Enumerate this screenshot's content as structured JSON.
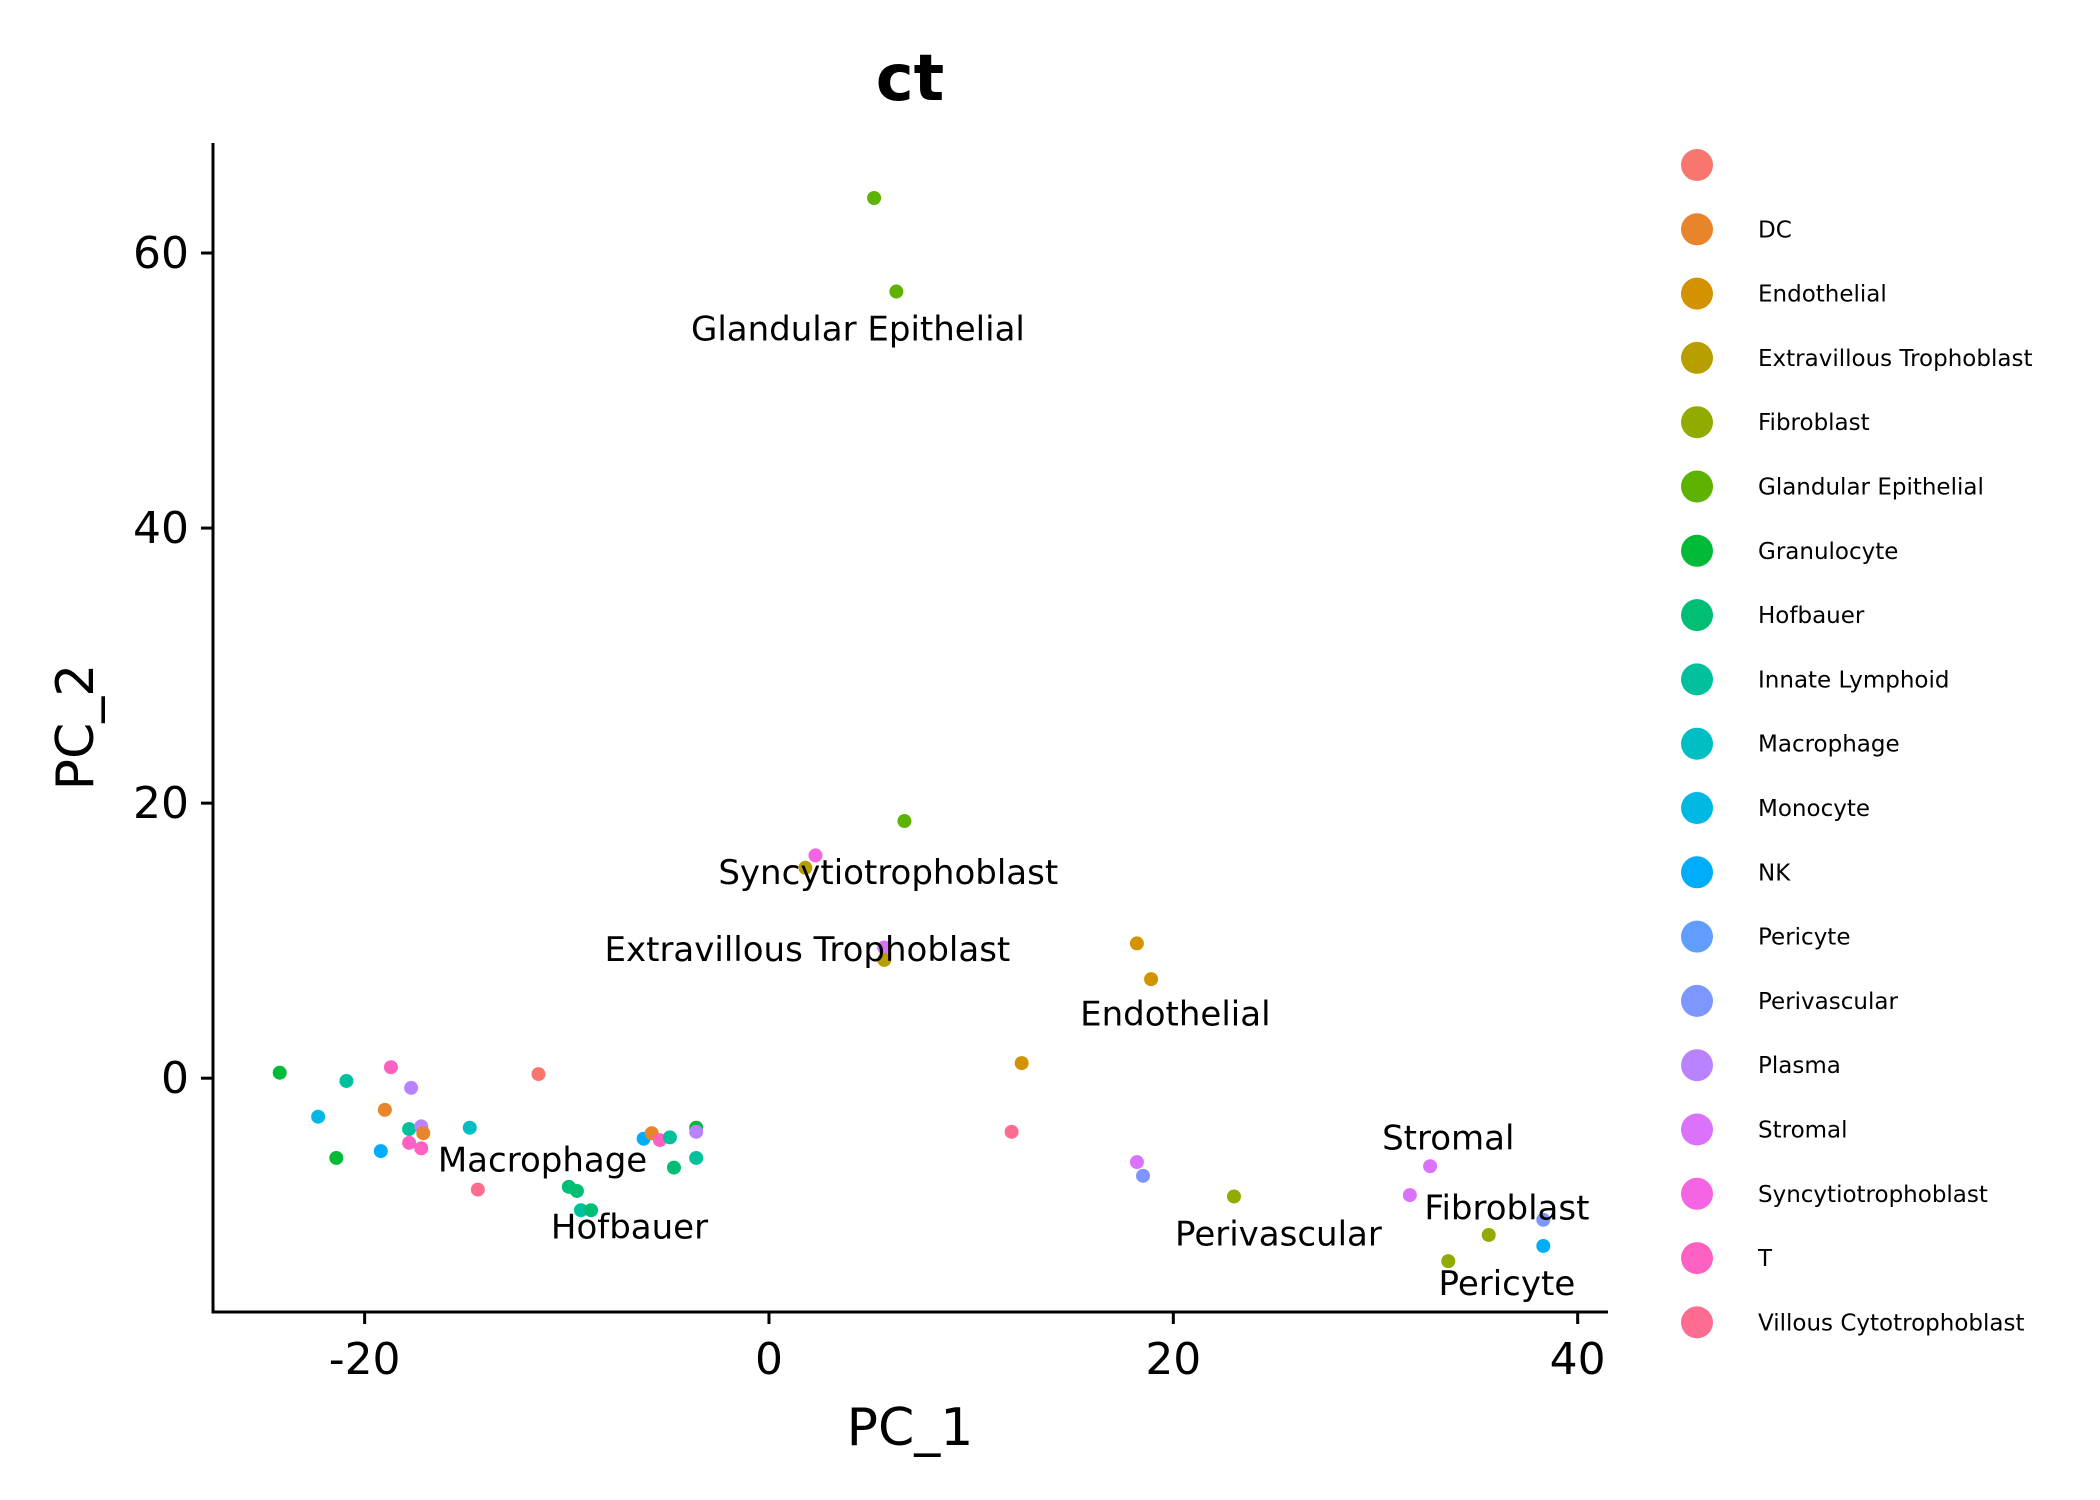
{
  "chart_data": {
    "type": "scatter",
    "title": "ct",
    "xlabel": "PC_1",
    "ylabel": "PC_2",
    "xlim": [
      -27.5,
      41.5
    ],
    "ylim": [
      -17,
      68
    ],
    "xticks": [
      -20,
      0,
      20,
      40
    ],
    "yticks": [
      0,
      20,
      40,
      60
    ],
    "grid": false,
    "legend_position": "right",
    "legend": [
      {
        "name": "",
        "color": "#F8766D"
      },
      {
        "name": "DC",
        "color": "#E8852B"
      },
      {
        "name": "Endothelial",
        "color": "#D39200"
      },
      {
        "name": "Extravillous Trophoblast",
        "color": "#B79F00"
      },
      {
        "name": "Fibroblast",
        "color": "#93AA00"
      },
      {
        "name": "Glandular Epithelial",
        "color": "#5EB300"
      },
      {
        "name": "Granulocyte",
        "color": "#00BA38"
      },
      {
        "name": "Hofbauer",
        "color": "#00BF74"
      },
      {
        "name": "Innate Lymphoid",
        "color": "#00C19C"
      },
      {
        "name": "Macrophage",
        "color": "#00BFC4"
      },
      {
        "name": "Monocyte",
        "color": "#00B9E3"
      },
      {
        "name": "NK",
        "color": "#00ADFA"
      },
      {
        "name": "Pericyte",
        "color": "#619CFF"
      },
      {
        "name": "Perivascular",
        "color": "#7E96FF"
      },
      {
        "name": "Plasma",
        "color": "#B983FF"
      },
      {
        "name": "Stromal",
        "color": "#DB72FB"
      },
      {
        "name": "Syncytiotrophoblast",
        "color": "#F564E3"
      },
      {
        "name": "T",
        "color": "#FF61C3"
      },
      {
        "name": "Villous Cytotrophoblast",
        "color": "#FF6C91"
      }
    ],
    "points": [
      {
        "x": 5.2,
        "y": 64.0,
        "color": "#5EB300"
      },
      {
        "x": 6.3,
        "y": 57.2,
        "color": "#5EB300"
      },
      {
        "x": 6.7,
        "y": 18.7,
        "color": "#5EB300"
      },
      {
        "x": 2.3,
        "y": 16.2,
        "color": "#F564E3"
      },
      {
        "x": 1.8,
        "y": 15.3,
        "color": "#B79F00"
      },
      {
        "x": 5.7,
        "y": 9.5,
        "color": "#DB72FB"
      },
      {
        "x": 5.7,
        "y": 8.6,
        "color": "#B79F00"
      },
      {
        "x": 18.2,
        "y": 9.8,
        "color": "#D39200"
      },
      {
        "x": 18.9,
        "y": 7.2,
        "color": "#D39200"
      },
      {
        "x": 12.5,
        "y": 1.1,
        "color": "#D39200"
      },
      {
        "x": 12.0,
        "y": -3.9,
        "color": "#FF6C91"
      },
      {
        "x": 18.2,
        "y": -6.1,
        "color": "#DB72FB"
      },
      {
        "x": 18.5,
        "y": -7.1,
        "color": "#7E96FF"
      },
      {
        "x": 23.0,
        "y": -8.6,
        "color": "#93AA00"
      },
      {
        "x": 32.7,
        "y": -6.4,
        "color": "#DB72FB"
      },
      {
        "x": 31.7,
        "y": -8.5,
        "color": "#DB72FB"
      },
      {
        "x": 38.3,
        "y": -10.3,
        "color": "#7E96FF"
      },
      {
        "x": 35.6,
        "y": -11.4,
        "color": "#93AA00"
      },
      {
        "x": 38.3,
        "y": -12.2,
        "color": "#00ADFA"
      },
      {
        "x": 33.6,
        "y": -13.3,
        "color": "#93AA00"
      },
      {
        "x": -11.4,
        "y": 0.3,
        "color": "#F8766D"
      },
      {
        "x": -24.2,
        "y": 0.4,
        "color": "#00BA38"
      },
      {
        "x": -20.9,
        "y": -0.2,
        "color": "#00C19C"
      },
      {
        "x": -18.7,
        "y": 0.8,
        "color": "#FF61C3"
      },
      {
        "x": -17.7,
        "y": -0.7,
        "color": "#B983FF"
      },
      {
        "x": -22.3,
        "y": -2.8,
        "color": "#00B9E3"
      },
      {
        "x": -19.0,
        "y": -2.3,
        "color": "#E8852B"
      },
      {
        "x": -17.8,
        "y": -3.7,
        "color": "#00C19C"
      },
      {
        "x": -17.2,
        "y": -3.5,
        "color": "#B983FF"
      },
      {
        "x": -17.1,
        "y": -4.0,
        "color": "#E8852B"
      },
      {
        "x": -14.8,
        "y": -3.6,
        "color": "#00BFC4"
      },
      {
        "x": -17.8,
        "y": -4.7,
        "color": "#FF61C3"
      },
      {
        "x": -17.2,
        "y": -5.1,
        "color": "#FF61C3"
      },
      {
        "x": -19.2,
        "y": -5.3,
        "color": "#00ADFA"
      },
      {
        "x": -21.4,
        "y": -5.8,
        "color": "#00BA38"
      },
      {
        "x": -14.4,
        "y": -8.1,
        "color": "#FF6C91"
      },
      {
        "x": -9.9,
        "y": -7.9,
        "color": "#00BF74"
      },
      {
        "x": -9.5,
        "y": -8.2,
        "color": "#00BF74"
      },
      {
        "x": -9.3,
        "y": -9.6,
        "color": "#00C19C"
      },
      {
        "x": -8.8,
        "y": -9.6,
        "color": "#00BF74"
      },
      {
        "x": -6.2,
        "y": -4.4,
        "color": "#00ADFA"
      },
      {
        "x": -5.8,
        "y": -4.0,
        "color": "#E8852B"
      },
      {
        "x": -5.4,
        "y": -4.5,
        "color": "#FF61C3"
      },
      {
        "x": -4.9,
        "y": -4.3,
        "color": "#00C19C"
      },
      {
        "x": -3.6,
        "y": -3.6,
        "color": "#00BA38"
      },
      {
        "x": -3.6,
        "y": -3.9,
        "color": "#B983FF"
      },
      {
        "x": -3.6,
        "y": -5.8,
        "color": "#00C19C"
      },
      {
        "x": -4.7,
        "y": -6.5,
        "color": "#00BF74"
      }
    ],
    "labels": [
      {
        "text": "Glandular Epithelial",
        "x": 4.4,
        "y": 54.5
      },
      {
        "text": "Syncytiotrophoblast",
        "x": 5.9,
        "y": 15.0
      },
      {
        "text": "Extravillous Trophoblast",
        "x": 1.9,
        "y": 9.4
      },
      {
        "text": "Endothelial",
        "x": 20.1,
        "y": 4.7
      },
      {
        "text": "Stromal",
        "x": 33.6,
        "y": -4.3
      },
      {
        "text": "Macrophage",
        "x": -11.2,
        "y": -5.9
      },
      {
        "text": "Fibroblast",
        "x": 36.5,
        "y": -9.4
      },
      {
        "text": "Hofbauer",
        "x": -6.9,
        "y": -10.8
      },
      {
        "text": "Perivascular",
        "x": 25.2,
        "y": -11.3
      },
      {
        "text": "Pericyte",
        "x": 36.5,
        "y": -14.9
      }
    ]
  }
}
